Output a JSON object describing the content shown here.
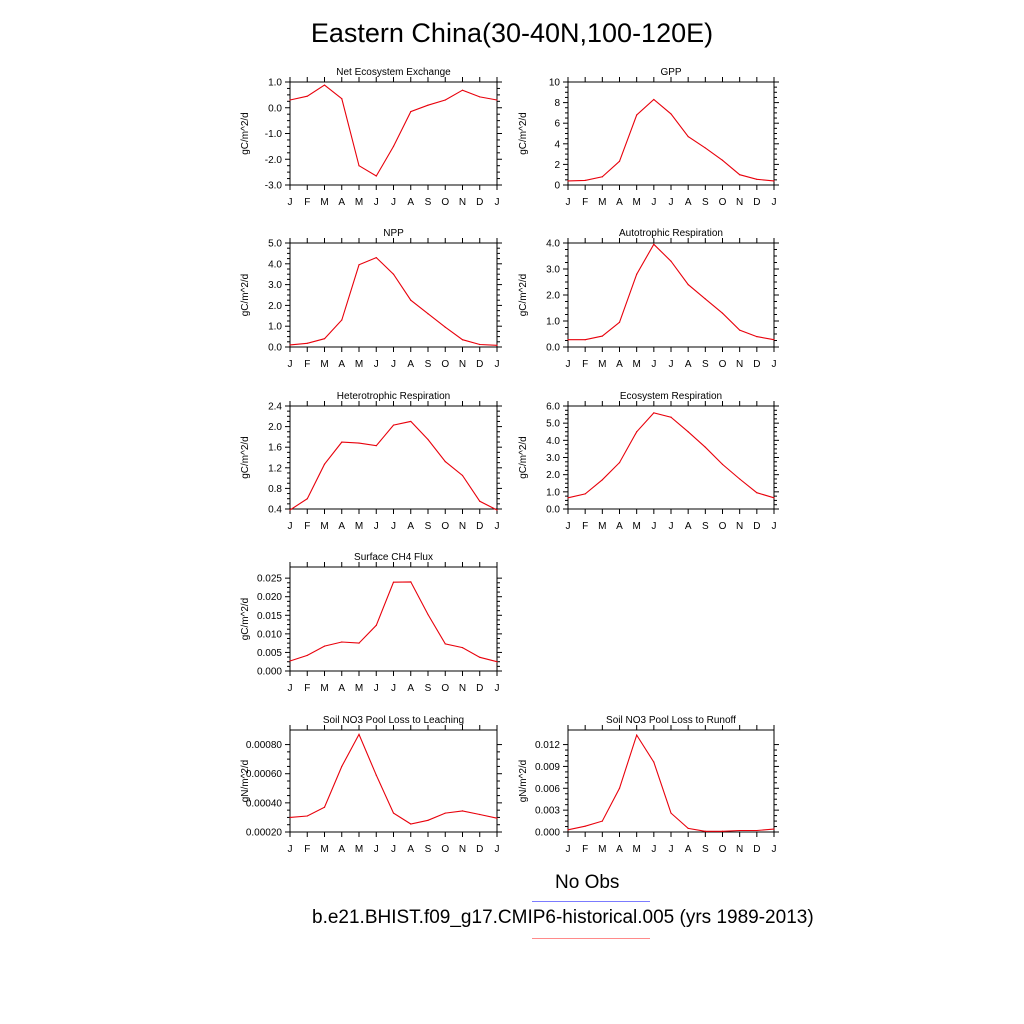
{
  "title": "Eastern China(30-40N,100-120E)",
  "line_color": "#e8000b",
  "legend": {
    "obs_label": "No Obs",
    "obs_color": "#7b7bff",
    "model_label": "b.e21.BHIST.f09_g17.CMIP6-historical.005 (yrs 1989-2013)",
    "model_color": "#ff8a8a"
  },
  "chart_data": [
    {
      "type": "line",
      "title": "Net Ecosystem Exchange",
      "ylabel": "gC/m^2/d",
      "x": [
        "J",
        "F",
        "M",
        "A",
        "M",
        "J",
        "J",
        "A",
        "S",
        "O",
        "N",
        "D",
        "J"
      ],
      "values": [
        0.3,
        0.45,
        0.88,
        0.35,
        -2.25,
        -2.65,
        -1.5,
        -0.15,
        0.1,
        0.3,
        0.68,
        0.42,
        0.3
      ],
      "ylim": [
        -3.0,
        1.0
      ],
      "yticks": [
        -3.0,
        -2.0,
        -1.0,
        0.0,
        1.0
      ],
      "yticklabels": [
        "-3.0",
        "-2.0",
        "-1.0",
        "0.0",
        "1.0"
      ]
    },
    {
      "type": "line",
      "title": "GPP",
      "ylabel": "gC/m^2/d",
      "x": [
        "J",
        "F",
        "M",
        "A",
        "M",
        "J",
        "J",
        "A",
        "S",
        "O",
        "N",
        "D",
        "J"
      ],
      "values": [
        0.4,
        0.45,
        0.8,
        2.3,
        6.8,
        8.3,
        6.9,
        4.7,
        3.6,
        2.4,
        1.0,
        0.55,
        0.4
      ],
      "ylim": [
        0,
        10
      ],
      "yticks": [
        0,
        2,
        4,
        6,
        8,
        10
      ],
      "yticklabels": [
        "0",
        "2",
        "4",
        "6",
        "8",
        "10"
      ]
    },
    {
      "type": "line",
      "title": "NPP",
      "ylabel": "gC/m^2/d",
      "x": [
        "J",
        "F",
        "M",
        "A",
        "M",
        "J",
        "J",
        "A",
        "S",
        "O",
        "N",
        "D",
        "J"
      ],
      "values": [
        0.1,
        0.18,
        0.4,
        1.3,
        3.95,
        4.3,
        3.5,
        2.25,
        1.6,
        0.95,
        0.35,
        0.12,
        0.08
      ],
      "ylim": [
        0,
        5.0
      ],
      "yticks": [
        0,
        1,
        2,
        3,
        4,
        5
      ],
      "yticklabels": [
        "0.0",
        "1.0",
        "2.0",
        "3.0",
        "4.0",
        "5.0"
      ]
    },
    {
      "type": "line",
      "title": "Autotrophic Respiration",
      "ylabel": "gC/m^2/d",
      "x": [
        "J",
        "F",
        "M",
        "A",
        "M",
        "J",
        "J",
        "A",
        "S",
        "O",
        "N",
        "D",
        "J"
      ],
      "values": [
        0.28,
        0.28,
        0.42,
        0.95,
        2.8,
        3.95,
        3.3,
        2.4,
        1.85,
        1.3,
        0.65,
        0.4,
        0.28
      ],
      "ylim": [
        0,
        4.0
      ],
      "yticks": [
        0,
        1,
        2,
        3,
        4
      ],
      "yticklabels": [
        "0.0",
        "1.0",
        "2.0",
        "3.0",
        "4.0"
      ]
    },
    {
      "type": "line",
      "title": "Heterotrophic Respiration",
      "ylabel": "gC/m^2/d",
      "x": [
        "J",
        "F",
        "M",
        "A",
        "M",
        "J",
        "J",
        "A",
        "S",
        "O",
        "N",
        "D",
        "J"
      ],
      "values": [
        0.38,
        0.6,
        1.27,
        1.7,
        1.68,
        1.63,
        2.03,
        2.1,
        1.75,
        1.32,
        1.05,
        0.55,
        0.38
      ],
      "ylim": [
        0.4,
        2.4
      ],
      "yticks": [
        0.4,
        0.8,
        1.2,
        1.6,
        2.0,
        2.4
      ],
      "yticklabels": [
        "0.4",
        "0.8",
        "1.2",
        "1.6",
        "2.0",
        "2.4"
      ]
    },
    {
      "type": "line",
      "title": "Ecosystem Respiration",
      "ylabel": "gC/m^2/d",
      "x": [
        "J",
        "F",
        "M",
        "A",
        "M",
        "J",
        "J",
        "A",
        "S",
        "O",
        "N",
        "D",
        "J"
      ],
      "values": [
        0.65,
        0.88,
        1.7,
        2.7,
        4.5,
        5.6,
        5.35,
        4.5,
        3.6,
        2.6,
        1.75,
        0.95,
        0.65
      ],
      "ylim": [
        0,
        6.0
      ],
      "yticks": [
        0,
        1,
        2,
        3,
        4,
        5,
        6
      ],
      "yticklabels": [
        "0.0",
        "1.0",
        "2.0",
        "3.0",
        "4.0",
        "5.0",
        "6.0"
      ]
    },
    {
      "type": "line",
      "title": "Surface CH4 Flux",
      "ylabel": "gC/m^2/d",
      "x": [
        "J",
        "F",
        "M",
        "A",
        "M",
        "J",
        "J",
        "A",
        "S",
        "O",
        "N",
        "D",
        "J"
      ],
      "values": [
        0.0027,
        0.0042,
        0.0067,
        0.0078,
        0.0075,
        0.0123,
        0.0239,
        0.024,
        0.0152,
        0.0073,
        0.0063,
        0.0037,
        0.0025
      ],
      "ylim": [
        0,
        0.028
      ],
      "yticks": [
        0,
        0.005,
        0.01,
        0.015,
        0.02,
        0.025
      ],
      "yticklabels": [
        "0.000",
        "0.005",
        "0.010",
        "0.015",
        "0.020",
        "0.025"
      ]
    },
    {
      "type": "line",
      "title": "Soil NO3 Pool Loss to Leaching",
      "ylabel": "gN/m^2/d",
      "x": [
        "J",
        "F",
        "M",
        "A",
        "M",
        "J",
        "J",
        "A",
        "S",
        "O",
        "N",
        "D",
        "J"
      ],
      "values": [
        0.0003,
        0.00031,
        0.00037,
        0.00065,
        0.00087,
        0.00059,
        0.00033,
        0.000255,
        0.00028,
        0.00033,
        0.000345,
        0.00032,
        0.000295
      ],
      "ylim": [
        0.0002,
        0.0009
      ],
      "yticks": [
        0.0002,
        0.0004,
        0.0006,
        0.0008
      ],
      "yticklabels": [
        "0.00020",
        "0.00040",
        "0.00060",
        "0.00080"
      ]
    },
    {
      "type": "line",
      "title": "Soil NO3 Pool Loss to Runoff",
      "ylabel": "gN/m^2/d",
      "x": [
        "J",
        "F",
        "M",
        "A",
        "M",
        "J",
        "J",
        "A",
        "S",
        "O",
        "N",
        "D",
        "J"
      ],
      "values": [
        0.0003,
        0.0008,
        0.0015,
        0.006,
        0.0133,
        0.0096,
        0.0026,
        0.0005,
        0.0001,
        0.0001,
        0.0002,
        0.0002,
        0.0004
      ],
      "ylim": [
        0,
        0.014
      ],
      "yticks": [
        0,
        0.003,
        0.006,
        0.009,
        0.012
      ],
      "yticklabels": [
        "0.000",
        "0.003",
        "0.006",
        "0.009",
        "0.012"
      ]
    }
  ]
}
